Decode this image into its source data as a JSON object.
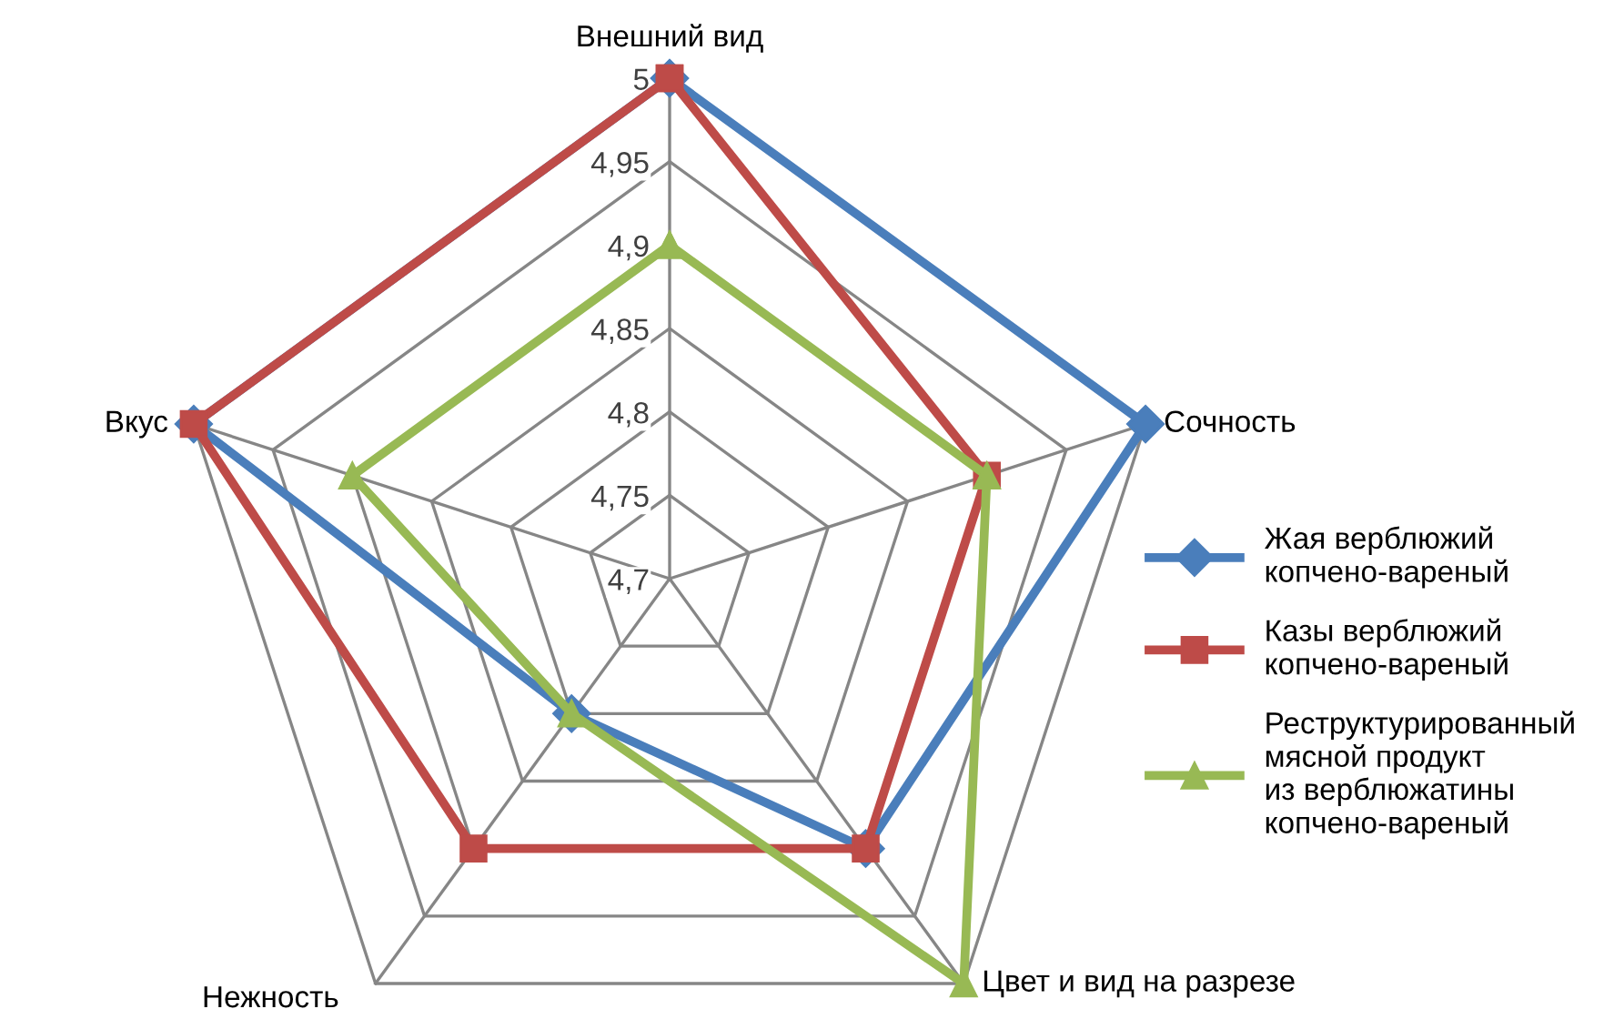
{
  "chart_data": {
    "type": "radar",
    "categories": [
      "Внешний вид",
      "Сочность",
      "Цвет и вид на разрезе",
      "Нежность",
      "Вкус"
    ],
    "ylim": [
      4.7,
      5
    ],
    "yticks": [
      {
        "value": 4.7,
        "label": "4,7"
      },
      {
        "value": 4.75,
        "label": "4,75"
      },
      {
        "value": 4.8,
        "label": "4,8"
      },
      {
        "value": 4.85,
        "label": "4,85"
      },
      {
        "value": 4.9,
        "label": "4,9"
      },
      {
        "value": 4.95,
        "label": "4,95"
      },
      5
    ],
    "grid": true,
    "legend": "right",
    "line_style": "solid",
    "series": [
      {
        "name": "Жая верблюжий\nкопчено-вареный",
        "color": "#4a7ebb",
        "marker": "diamond",
        "values": [
          5,
          5,
          4.9,
          4.8,
          5
        ]
      },
      {
        "name": "Казы верблюжий\nкопчено-вареный",
        "color": "#be4b48",
        "marker": "square",
        "values": [
          5,
          4.9,
          4.9,
          4.9,
          5
        ]
      },
      {
        "name": "Реструктурированный\nмясной продукт\nиз верблюжатины\nкопчено-вареный",
        "color": "#98b954",
        "marker": "triangle",
        "values": [
          4.9,
          4.9,
          5,
          4.8,
          4.9
        ]
      }
    ]
  }
}
